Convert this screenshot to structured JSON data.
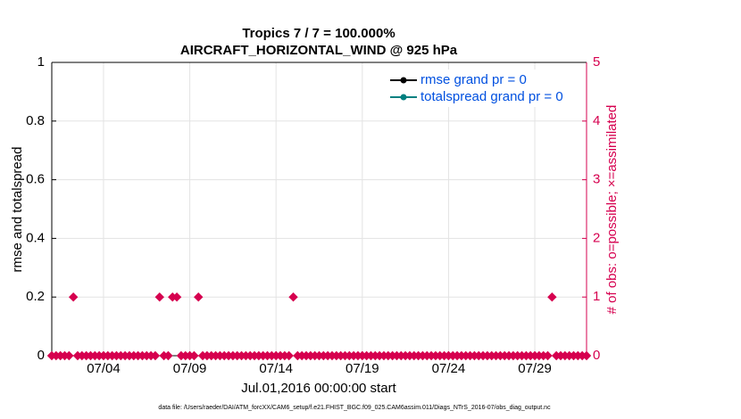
{
  "chart_data": {
    "type": "scatter",
    "title": "Tropics 7 / 7 = 100.000%",
    "subtitle": "AIRCRAFT_HORIZONTAL_WIND @ 925 hPa",
    "ylabel": "rmse and totalspread",
    "y2label": "# of obs: o=possible; ×=assimilated",
    "xlabel": "Jul.01,2016 00:00:00 start",
    "footnote": "data file: /Users/raeder/DAI/ATM_forcXX/CAM6_setup/f.e21.FHIST_BGC.f09_025.CAM6assim.011/Diags_NTrS_2016-07/obs_diag_output.nc",
    "legend": [
      {
        "label": "rmse grand pr = 0",
        "color": "#000000"
      },
      {
        "label": "totalspread grand pr = 0",
        "color": "#008080"
      }
    ],
    "legend_position": "upper right",
    "grid": true,
    "xlim": [
      0,
      31
    ],
    "xticks": [
      {
        "value": 3,
        "label": "07/04"
      },
      {
        "value": 8,
        "label": "07/09"
      },
      {
        "value": 13,
        "label": "07/14"
      },
      {
        "value": 18,
        "label": "07/19"
      },
      {
        "value": 23,
        "label": "07/24"
      },
      {
        "value": 28,
        "label": "07/29"
      }
    ],
    "ylim": [
      0,
      1
    ],
    "yticks": [
      0,
      0.2,
      0.4,
      0.6,
      0.8,
      1
    ],
    "y2lim": [
      0,
      5
    ],
    "y2ticks": [
      0,
      1,
      2,
      3,
      4,
      5
    ],
    "x": [
      0,
      0.25,
      0.5,
      0.75,
      1,
      1.25,
      1.5,
      1.75,
      2,
      2.25,
      2.5,
      2.75,
      3,
      3.25,
      3.5,
      3.75,
      4,
      4.25,
      4.5,
      4.75,
      5,
      5.25,
      5.5,
      5.75,
      6,
      6.25,
      6.5,
      6.75,
      7,
      7.25,
      7.5,
      7.75,
      8,
      8.25,
      8.5,
      8.75,
      9,
      9.25,
      9.5,
      9.75,
      10,
      10.25,
      10.5,
      10.75,
      11,
      11.25,
      11.5,
      11.75,
      12,
      12.25,
      12.5,
      12.75,
      13,
      13.25,
      13.5,
      13.75,
      14,
      14.25,
      14.5,
      14.75,
      15,
      15.25,
      15.5,
      15.75,
      16,
      16.25,
      16.5,
      16.75,
      17,
      17.25,
      17.5,
      17.75,
      18,
      18.25,
      18.5,
      18.75,
      19,
      19.25,
      19.5,
      19.75,
      20,
      20.25,
      20.5,
      20.75,
      21,
      21.25,
      21.5,
      21.75,
      22,
      22.25,
      22.5,
      22.75,
      23,
      23.25,
      23.5,
      23.75,
      24,
      24.25,
      24.5,
      24.75,
      25,
      25.25,
      25.5,
      25.75,
      26,
      26.25,
      26.5,
      26.75,
      27,
      27.25,
      27.5,
      27.75,
      28,
      28.25,
      28.5,
      28.75,
      29,
      29.25,
      29.5,
      29.75,
      30,
      30.25,
      30.5,
      30.75,
      31
    ],
    "series": [
      {
        "axis": "y2",
        "color": "#d6004f",
        "values": [
          0,
          0,
          0,
          0,
          0,
          1,
          0,
          0,
          0,
          0,
          0,
          0,
          0,
          0,
          0,
          0,
          0,
          0,
          0,
          0,
          0,
          0,
          0,
          0,
          0,
          1,
          0,
          0,
          1,
          1,
          0,
          0,
          0,
          0,
          1,
          0,
          0,
          0,
          0,
          0,
          0,
          0,
          0,
          0,
          0,
          0,
          0,
          0,
          0,
          0,
          0,
          0,
          0,
          0,
          0,
          0,
          1,
          0,
          0,
          0,
          0,
          0,
          0,
          0,
          0,
          0,
          0,
          0,
          0,
          0,
          0,
          0,
          0,
          0,
          0,
          0,
          0,
          0,
          0,
          0,
          0,
          0,
          0,
          0,
          0,
          0,
          0,
          0,
          0,
          0,
          0,
          0,
          0,
          0,
          0,
          0,
          0,
          0,
          0,
          0,
          0,
          0,
          0,
          0,
          0,
          0,
          0,
          0,
          0,
          0,
          0,
          0,
          0,
          0,
          0,
          0,
          1,
          0,
          0,
          0,
          0,
          0,
          0,
          0,
          0
        ]
      }
    ]
  }
}
